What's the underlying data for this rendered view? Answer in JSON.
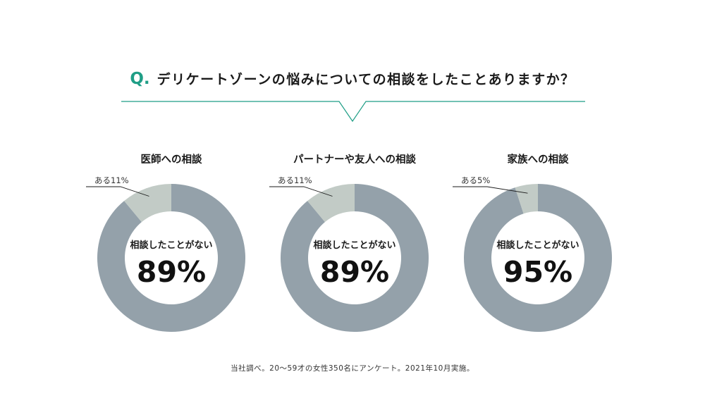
{
  "header": {
    "q_mark": "Q.",
    "question": "デリケートゾーンの悩みについての相談をしたことありますか？"
  },
  "footnote": "当社調べ。20〜59才の女性350名にアンケート。2021年10月実施。",
  "colors": {
    "accent": "#1f9e86",
    "no_slice": "#94a1aa",
    "yes_slice": "#c2cbc6",
    "text": "#1a1a1a"
  },
  "chart_data": [
    {
      "type": "pie",
      "title": "医師への相談",
      "center_label": "相談したことがない",
      "center_value": "89%",
      "callout": "ある11%",
      "slices": [
        {
          "label": "ある",
          "value": 11
        },
        {
          "label": "相談したことがない",
          "value": 89
        }
      ]
    },
    {
      "type": "pie",
      "title": "パートナーや友人への相談",
      "center_label": "相談したことがない",
      "center_value": "89%",
      "callout": "ある11%",
      "slices": [
        {
          "label": "ある",
          "value": 11
        },
        {
          "label": "相談したことがない",
          "value": 89
        }
      ]
    },
    {
      "type": "pie",
      "title": "家族への相談",
      "center_label": "相談したことがない",
      "center_value": "95%",
      "callout": "ある5%",
      "slices": [
        {
          "label": "ある",
          "value": 5
        },
        {
          "label": "相談したことがない",
          "value": 95
        }
      ]
    }
  ]
}
